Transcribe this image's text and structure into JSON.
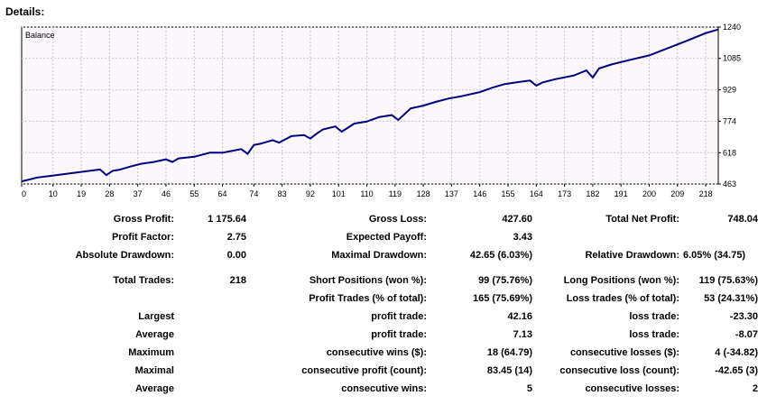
{
  "page_title": "Details:",
  "chart_data": {
    "type": "line",
    "title": "Balance",
    "xlabel": "",
    "ylabel": "",
    "x_ticks": [
      "0",
      "10",
      "19",
      "28",
      "37",
      "46",
      "55",
      "64",
      "74",
      "83",
      "92",
      "101",
      "110",
      "119",
      "128",
      "137",
      "146",
      "155",
      "164",
      "173",
      "182",
      "191",
      "200",
      "209",
      "218"
    ],
    "y_ticks": [
      "1240",
      "1085",
      "929",
      "774",
      "618",
      "463"
    ],
    "xlim": [
      0,
      222
    ],
    "ylim": [
      463,
      1240
    ],
    "grid": true,
    "series": [
      {
        "name": "",
        "color": "#000080",
        "x": [
          0,
          5,
          10,
          15,
          20,
          25,
          27,
          29,
          31,
          35,
          38,
          42,
          46,
          48,
          50,
          55,
          60,
          64,
          70,
          72,
          74,
          76,
          80,
          82,
          86,
          90,
          92,
          94,
          96,
          100,
          102,
          106,
          110,
          114,
          118,
          120,
          124,
          128,
          132,
          136,
          140,
          146,
          150,
          154,
          158,
          162,
          164,
          166,
          170,
          176,
          180,
          182,
          184,
          188,
          194,
          200,
          206,
          212,
          218,
          222
        ],
        "y": [
          476,
          495,
          505,
          515,
          525,
          535,
          507,
          528,
          533,
          551,
          563,
          572,
          585,
          572,
          590,
          598,
          618,
          618,
          636,
          612,
          656,
          662,
          680,
          668,
          700,
          705,
          688,
          712,
          733,
          748,
          722,
          762,
          772,
          795,
          804,
          780,
          837,
          851,
          870,
          886,
          897,
          918,
          940,
          958,
          967,
          975,
          950,
          966,
          982,
          1000,
          1025,
          990,
          1035,
          1055,
          1078,
          1100,
          1136,
          1172,
          1210,
          1228
        ]
      }
    ]
  },
  "stats": {
    "gross_profit_label": "Gross Profit:",
    "gross_profit": "1 175.64",
    "gross_loss_label": "Gross Loss:",
    "gross_loss": "427.60",
    "total_net_profit_label": "Total Net Profit:",
    "total_net_profit": "748.04",
    "profit_factor_label": "Profit Factor:",
    "profit_factor": "2.75",
    "expected_payoff_label": "Expected Payoff:",
    "expected_payoff": "3.43",
    "absolute_drawdown_label": "Absolute Drawdown:",
    "absolute_drawdown": "0.00",
    "maximal_drawdown_label": "Maximal Drawdown:",
    "maximal_drawdown": "42.65 (6.03%)",
    "relative_drawdown_label": "Relative Drawdown:",
    "relative_drawdown": "6.05% (34.75)",
    "total_trades_label": "Total Trades:",
    "total_trades": "218",
    "short_positions_label": "Short Positions (won %):",
    "short_positions": "99 (75.76%)",
    "long_positions_label": "Long Positions (won %):",
    "long_positions": "119 (75.63%)",
    "profit_trades_label": "Profit Trades (% of total):",
    "profit_trades": "165 (75.69%)",
    "loss_trades_label": "Loss trades (% of total):",
    "loss_trades": "53 (24.31%)",
    "largest_label": "Largest",
    "largest_profit_label": "profit trade:",
    "largest_profit": "42.16",
    "largest_loss_label": "loss trade:",
    "largest_loss": "-23.30",
    "average_label": "Average",
    "average_profit_label": "profit trade:",
    "average_profit": "7.13",
    "average_loss_label": "loss trade:",
    "average_loss": "-8.07",
    "maximum_label": "Maximum",
    "max_consec_wins_label": "consecutive wins ($):",
    "max_consec_wins": "18 (64.79)",
    "max_consec_losses_label": "consecutive losses ($):",
    "max_consec_losses": "4 (-34.82)",
    "maximal_label": "Maximal",
    "maximal_consec_profit_label": "consecutive profit (count):",
    "maximal_consec_profit": "83.45 (14)",
    "maximal_consec_loss_label": "consecutive loss (count):",
    "maximal_consec_loss": "-42.65 (3)",
    "average2_label": "Average",
    "avg_consec_wins_label": "consecutive wins:",
    "avg_consec_wins": "5",
    "avg_consec_losses_label": "consecutive losses:",
    "avg_consec_losses": "2"
  }
}
